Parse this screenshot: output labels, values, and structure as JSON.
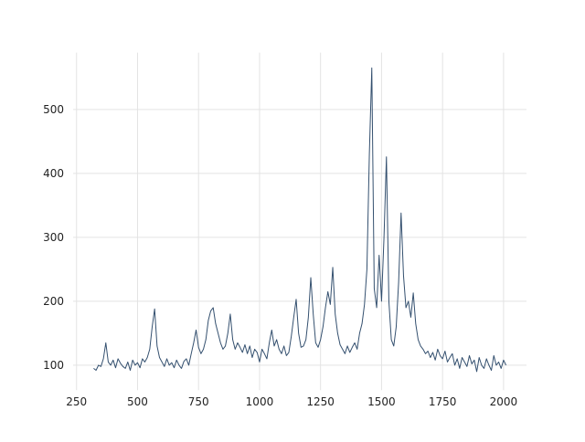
{
  "chart_data": {
    "type": "line",
    "x": [
      320,
      330,
      340,
      350,
      360,
      370,
      380,
      390,
      400,
      410,
      420,
      430,
      440,
      450,
      460,
      470,
      480,
      490,
      500,
      510,
      520,
      530,
      540,
      550,
      560,
      570,
      580,
      590,
      600,
      610,
      620,
      630,
      640,
      650,
      660,
      670,
      680,
      690,
      700,
      710,
      720,
      730,
      740,
      750,
      760,
      770,
      780,
      790,
      800,
      810,
      820,
      830,
      840,
      850,
      860,
      870,
      880,
      890,
      900,
      910,
      920,
      930,
      940,
      950,
      960,
      970,
      980,
      990,
      1000,
      1010,
      1020,
      1030,
      1040,
      1050,
      1060,
      1070,
      1080,
      1090,
      1100,
      1110,
      1120,
      1130,
      1140,
      1150,
      1160,
      1170,
      1180,
      1190,
      1200,
      1210,
      1220,
      1230,
      1240,
      1250,
      1260,
      1270,
      1280,
      1290,
      1300,
      1310,
      1320,
      1330,
      1340,
      1350,
      1360,
      1370,
      1380,
      1390,
      1400,
      1410,
      1420,
      1430,
      1440,
      1450,
      1460,
      1470,
      1480,
      1490,
      1500,
      1510,
      1520,
      1530,
      1540,
      1550,
      1560,
      1570,
      1580,
      1590,
      1600,
      1610,
      1620,
      1630,
      1640,
      1650,
      1660,
      1670,
      1680,
      1690,
      1700,
      1710,
      1720,
      1730,
      1740,
      1750,
      1760,
      1770,
      1780,
      1790,
      1800,
      1810,
      1820,
      1830,
      1840,
      1850,
      1860,
      1870,
      1880,
      1890,
      1900,
      1910,
      1920,
      1930,
      1940,
      1950,
      1960,
      1970,
      1980,
      1990,
      2000,
      2010
    ],
    "series": [
      {
        "color": "#34506f",
        "values": [
          95,
          92,
          100,
          98,
          110,
          135,
          105,
          100,
          108,
          96,
          110,
          103,
          98,
          95,
          105,
          92,
          108,
          100,
          104,
          96,
          110,
          105,
          112,
          125,
          160,
          188,
          130,
          112,
          105,
          98,
          110,
          100,
          104,
          96,
          108,
          100,
          95,
          106,
          110,
          100,
          118,
          135,
          155,
          128,
          118,
          125,
          140,
          170,
          185,
          190,
          165,
          150,
          135,
          125,
          130,
          150,
          180,
          140,
          125,
          135,
          128,
          120,
          132,
          118,
          130,
          112,
          125,
          120,
          105,
          125,
          118,
          110,
          135,
          155,
          130,
          140,
          125,
          118,
          130,
          115,
          120,
          145,
          175,
          203,
          150,
          128,
          130,
          140,
          175,
          237,
          180,
          135,
          128,
          140,
          160,
          190,
          215,
          195,
          253,
          180,
          150,
          132,
          125,
          118,
          130,
          120,
          128,
          135,
          125,
          150,
          165,
          195,
          250,
          430,
          565,
          220,
          190,
          272,
          200,
          300,
          426,
          200,
          140,
          130,
          160,
          230,
          338,
          240,
          190,
          200,
          175,
          213,
          165,
          140,
          130,
          125,
          118,
          122,
          112,
          120,
          108,
          125,
          115,
          110,
          122,
          105,
          112,
          118,
          100,
          110,
          95,
          112,
          105,
          98,
          115,
          102,
          108,
          90,
          112,
          100,
          95,
          110,
          100,
          92,
          115,
          100,
          105,
          95,
          108,
          100
        ]
      }
    ],
    "xlim": [
      236,
      2094
    ],
    "ylim": [
      61,
      589
    ],
    "xticks": [
      250,
      500,
      750,
      1000,
      1250,
      1500,
      1750,
      2000
    ],
    "yticks": [
      100,
      200,
      300,
      400,
      500
    ],
    "grid": true
  }
}
